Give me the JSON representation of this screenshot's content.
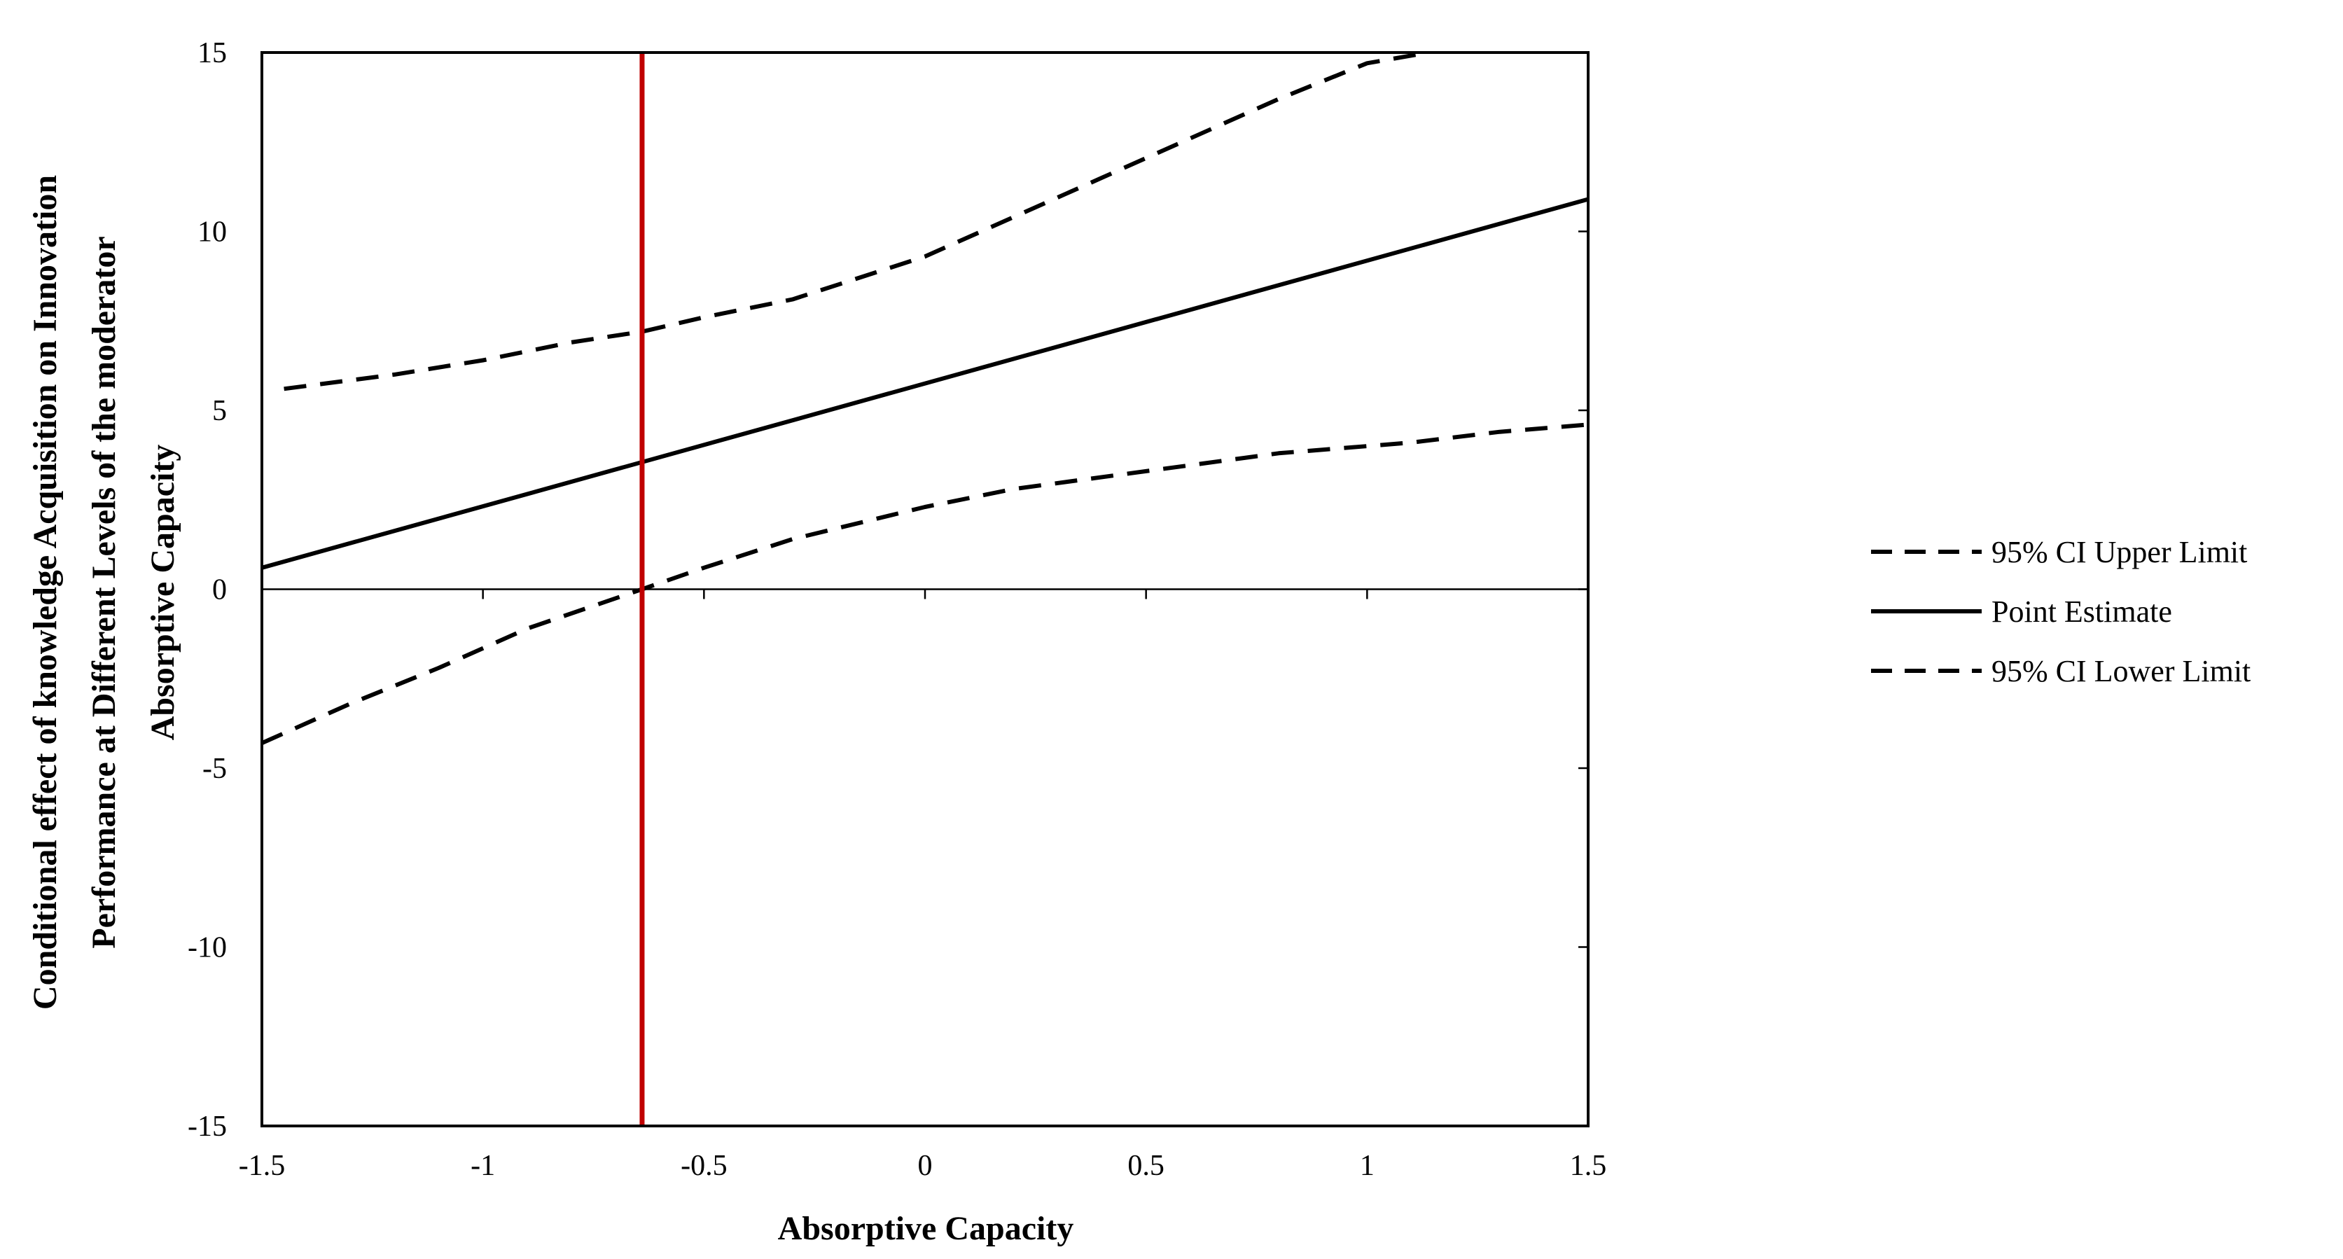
{
  "chart_data": {
    "type": "line",
    "xlabel": "Absorptive Capacity",
    "ylabel_lines": [
      "Conditional effect of knowledge Acquisition on Innovation",
      "Performance at Different Levels of the moderator",
      "Absorptive Capacity"
    ],
    "xlim": [
      -1.5,
      1.5
    ],
    "ylim": [
      -15,
      15
    ],
    "x_ticks": [
      -1.5,
      -1,
      -0.5,
      0,
      0.5,
      1,
      1.5
    ],
    "x_tick_labels": [
      "-1.5",
      "-1",
      "-0.5",
      "0",
      "0.5",
      "1",
      "1.5"
    ],
    "y_ticks": [
      -15,
      -10,
      -5,
      0,
      5,
      10,
      15
    ],
    "y_tick_labels": [
      "-15",
      "-10",
      "-5",
      "0",
      "5",
      "10",
      "15"
    ],
    "zero_line": true,
    "reference_line": {
      "x": -0.64,
      "color": "#c00000"
    },
    "legend_position": "right",
    "series": [
      {
        "name": "95% CI Upper Limit",
        "style": "dashed",
        "color": "#000000",
        "x": [
          -1.45,
          -1.2,
          -1.0,
          -0.8,
          -0.64,
          -0.5,
          -0.3,
          -0.1,
          0.0,
          0.2,
          0.4,
          0.6,
          0.8,
          1.0,
          1.14
        ],
        "y": [
          5.6,
          6.0,
          6.4,
          6.9,
          7.2,
          7.6,
          8.1,
          8.9,
          9.3,
          10.4,
          11.5,
          12.6,
          13.7,
          14.7,
          15.0
        ]
      },
      {
        "name": "Point Estimate",
        "style": "solid",
        "color": "#000000",
        "x": [
          -1.5,
          1.5
        ],
        "y": [
          0.6,
          10.9
        ]
      },
      {
        "name": "95% CI Lower Limit",
        "style": "dashed",
        "color": "#000000",
        "x": [
          -1.5,
          -1.3,
          -1.1,
          -0.9,
          -0.64,
          -0.5,
          -0.3,
          -0.1,
          0.0,
          0.2,
          0.5,
          0.8,
          1.1,
          1.3,
          1.5
        ],
        "y": [
          -4.3,
          -3.2,
          -2.2,
          -1.1,
          0.0,
          0.6,
          1.4,
          2.0,
          2.3,
          2.8,
          3.3,
          3.8,
          4.1,
          4.4,
          4.6
        ]
      }
    ]
  }
}
